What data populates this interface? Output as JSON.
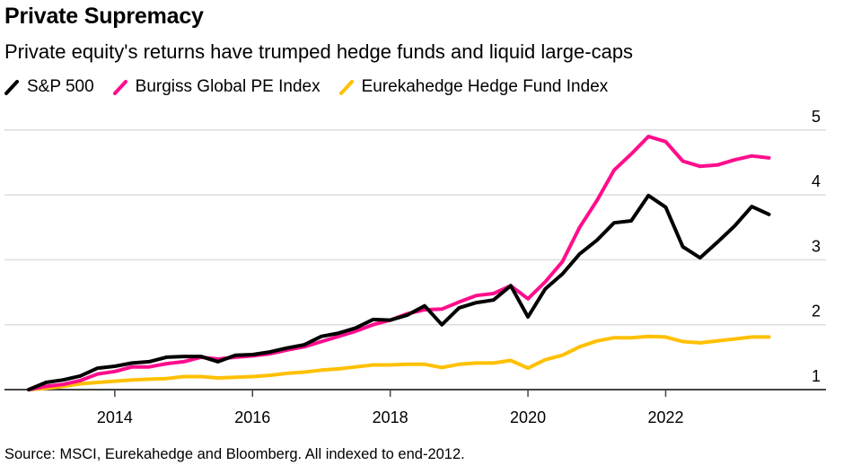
{
  "title": "Private Supremacy",
  "subtitle": "Private equity's returns have trumped hedge funds and liquid large-caps",
  "source": "Source: MSCI, Eurekahedge and Bloomberg. All indexed to end-2012.",
  "legend": [
    {
      "label": "S&P 500",
      "color": "#000000",
      "icon": "diagonal-line-icon"
    },
    {
      "label": "Burgiss Global PE Index",
      "color": "#ff0d8c",
      "icon": "diagonal-line-icon"
    },
    {
      "label": "Eurekahedge Hedge Fund Index",
      "color": "#ffc000",
      "icon": "diagonal-line-icon"
    }
  ],
  "chart_data": {
    "type": "line",
    "title": "Private Supremacy",
    "subtitle": "Private equity's returns have trumped hedge funds and liquid large-caps",
    "xlabel": "",
    "ylabel": "",
    "x_start": 2012.75,
    "x_step": 0.25,
    "xlim": [
      2012.75,
      2024.25
    ],
    "ylim": [
      1,
      5
    ],
    "x_ticks": [
      2014,
      2016,
      2018,
      2020,
      2022
    ],
    "x_tick_labels": [
      "2014",
      "2016",
      "2018",
      "2020",
      "2022"
    ],
    "y_ticks": [
      1,
      2,
      3,
      4,
      5
    ],
    "y_tick_labels": [
      "1",
      "2",
      "3",
      "4",
      "5"
    ],
    "y_axis_position": "right",
    "grid": true,
    "legend_position": "top-left",
    "series": [
      {
        "name": "S&P 500",
        "color": "#000000",
        "values": [
          1.0,
          1.11,
          1.15,
          1.21,
          1.33,
          1.36,
          1.41,
          1.43,
          1.5,
          1.51,
          1.51,
          1.43,
          1.53,
          1.54,
          1.58,
          1.64,
          1.69,
          1.82,
          1.87,
          1.95,
          2.08,
          2.07,
          2.15,
          2.29,
          2.0,
          2.26,
          2.34,
          2.38,
          2.6,
          2.12,
          2.55,
          2.78,
          3.09,
          3.3,
          3.57,
          3.6,
          3.99,
          3.81,
          3.2,
          3.03,
          3.27,
          3.52,
          3.82,
          3.7
        ]
      },
      {
        "name": "Burgiss Global PE Index",
        "color": "#ff0d8c",
        "values": [
          1.0,
          1.05,
          1.08,
          1.14,
          1.24,
          1.28,
          1.35,
          1.35,
          1.4,
          1.43,
          1.5,
          1.47,
          1.5,
          1.52,
          1.55,
          1.61,
          1.66,
          1.74,
          1.82,
          1.9,
          2.0,
          2.07,
          2.17,
          2.23,
          2.24,
          2.35,
          2.45,
          2.48,
          2.6,
          2.4,
          2.66,
          2.97,
          3.5,
          3.91,
          4.38,
          4.63,
          4.9,
          4.82,
          4.52,
          4.44,
          4.46,
          4.54,
          4.6,
          4.57
        ]
      },
      {
        "name": "Eurekahedge Hedge Fund Index",
        "color": "#ffc000",
        "values": [
          1.0,
          1.02,
          1.05,
          1.09,
          1.11,
          1.13,
          1.15,
          1.16,
          1.17,
          1.2,
          1.2,
          1.18,
          1.19,
          1.2,
          1.22,
          1.25,
          1.27,
          1.3,
          1.32,
          1.35,
          1.38,
          1.38,
          1.39,
          1.39,
          1.34,
          1.39,
          1.41,
          1.41,
          1.45,
          1.33,
          1.46,
          1.53,
          1.66,
          1.75,
          1.8,
          1.8,
          1.82,
          1.81,
          1.74,
          1.72,
          1.75,
          1.78,
          1.81,
          1.81
        ]
      }
    ]
  }
}
